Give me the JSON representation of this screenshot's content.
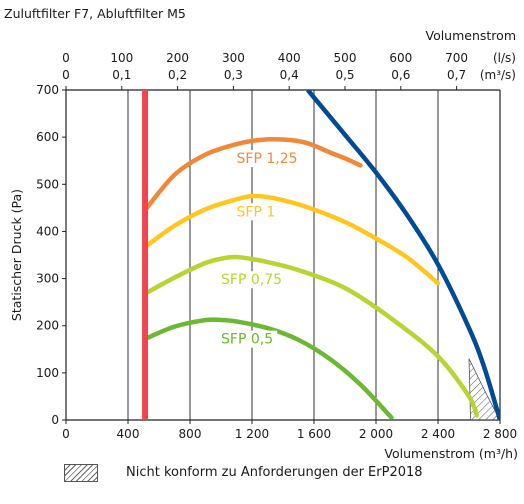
{
  "chart_data": {
    "type": "line",
    "subtitle": "Zuluftfilter F7, Abluftfilter M5",
    "xlabel": "Volumenstrom (m³/h)",
    "ylabel": "Statischer Druck (Pa)",
    "top_axis_title": "Volumenstrom",
    "xlim": [
      0,
      2800
    ],
    "ylim": [
      0,
      700
    ],
    "x_ticks": [
      0,
      400,
      800,
      1200,
      1600,
      2000,
      2400,
      2800
    ],
    "x_tick_labels": [
      "0",
      "400",
      "800",
      "1 200",
      "1 600",
      "2 000",
      "2 400",
      "2 800"
    ],
    "y_ticks": [
      0,
      100,
      200,
      300,
      400,
      500,
      600,
      700
    ],
    "y_tick_labels": [
      "0",
      "100",
      "200",
      "300",
      "400",
      "500",
      "600",
      "700"
    ],
    "top_ls_ticks": [
      0,
      100,
      200,
      300,
      400,
      500,
      600,
      700
    ],
    "top_ls_labels": [
      "0",
      "100",
      "200",
      "300",
      "400",
      "500",
      "600",
      "700"
    ],
    "top_ls_unit": "(l/s)",
    "top_m3s_ticks": [
      0,
      0.1,
      0.2,
      0.3,
      0.4,
      0.5,
      0.6,
      0.7
    ],
    "top_m3s_labels": [
      "0",
      "0,1",
      "0,2",
      "0,3",
      "0,4",
      "0,5",
      "0,6",
      "0,7"
    ],
    "top_m3s_unit": "(m³/s)",
    "grid": "vertical",
    "min_flow_line": {
      "x": 510,
      "color": "#f0454f"
    },
    "max_curve": {
      "color": "#004b93",
      "x": [
        1560,
        1800,
        2000,
        2200,
        2400,
        2600,
        2700,
        2800
      ],
      "y": [
        700,
        605,
        525,
        435,
        330,
        195,
        110,
        0
      ]
    },
    "series": [
      {
        "label": "SFP 1,25",
        "color": "#f0883a",
        "x": [
          510,
          700,
          900,
          1100,
          1250,
          1400,
          1550,
          1700,
          1800,
          1900
        ],
        "y": [
          445,
          520,
          563,
          585,
          594,
          595,
          588,
          568,
          555,
          540
        ]
      },
      {
        "label": "SFP 1",
        "color": "#ffc61e",
        "x": [
          510,
          700,
          900,
          1100,
          1200,
          1350,
          1550,
          1800,
          2000,
          2200,
          2400
        ],
        "y": [
          367,
          412,
          447,
          468,
          475,
          470,
          452,
          420,
          385,
          345,
          290
        ]
      },
      {
        "label": "SFP 0,75",
        "color": "#b9d332",
        "x": [
          510,
          700,
          900,
          1050,
          1150,
          1300,
          1500,
          1800,
          2100,
          2400,
          2600,
          2650
        ],
        "y": [
          268,
          302,
          333,
          345,
          344,
          335,
          318,
          280,
          215,
          135,
          50,
          10
        ]
      },
      {
        "label": "SFP 0,5",
        "color": "#6cb834",
        "x": [
          510,
          700,
          900,
          1000,
          1100,
          1300,
          1500,
          1700,
          1900,
          2100
        ],
        "y": [
          172,
          198,
          212,
          212,
          209,
          195,
          170,
          130,
          75,
          5
        ]
      }
    ],
    "hatch_region": {
      "points": [
        [
          2600,
          130
        ],
        [
          2720,
          50
        ],
        [
          2800,
          0
        ],
        [
          2610,
          0
        ]
      ]
    },
    "legend": [
      {
        "swatch": "hatch",
        "label": "Nicht konform zu Anforderungen der ErP2018"
      }
    ]
  }
}
